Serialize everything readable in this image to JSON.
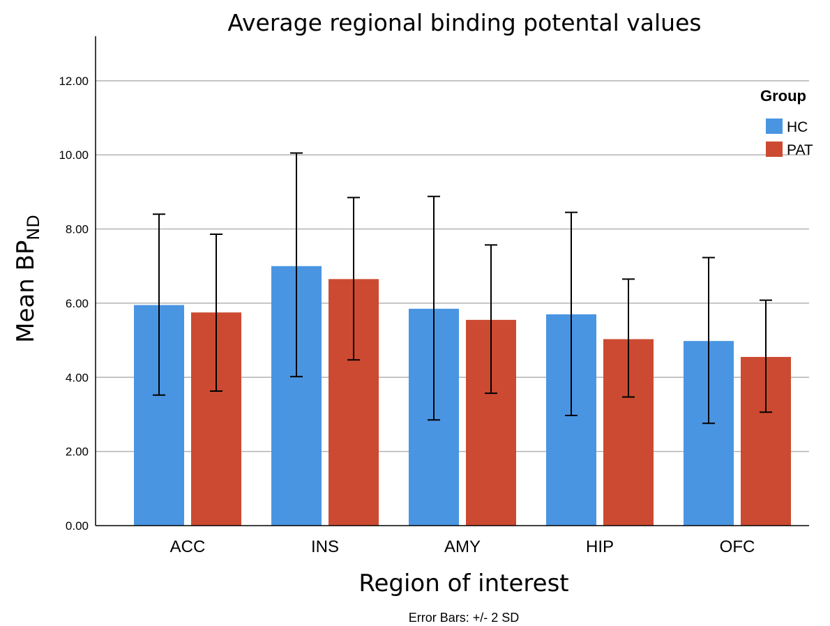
{
  "chart_data": {
    "type": "bar",
    "title": "Average regional binding potental values",
    "xlabel": "Region of interest",
    "ylabel": "Mean BP",
    "ylabel_subscript": "ND",
    "note": "Error Bars: +/- 2 SD",
    "categories": [
      "ACC",
      "INS",
      "AMY",
      "HIP",
      "OFC"
    ],
    "ylim": [
      0,
      13.2
    ],
    "yticks": [
      "0.00",
      "2.00",
      "4.00",
      "6.00",
      "8.00",
      "10.00",
      "12.00"
    ],
    "grid": true,
    "legend_title": "Group",
    "legend_position": "top-right",
    "series": [
      {
        "name": "HC",
        "color": "#4a95e2",
        "values": [
          5.95,
          7.0,
          5.85,
          5.7,
          4.98
        ],
        "error_low": [
          3.52,
          4.02,
          2.85,
          2.97,
          2.76
        ],
        "error_high": [
          8.4,
          10.05,
          8.88,
          8.45,
          7.23
        ]
      },
      {
        "name": "PAT",
        "color": "#cc4a31",
        "values": [
          5.75,
          6.65,
          5.55,
          5.03,
          4.55
        ],
        "error_low": [
          3.63,
          4.47,
          3.57,
          3.47,
          3.06
        ],
        "error_high": [
          7.86,
          8.85,
          7.57,
          6.65,
          6.08
        ]
      }
    ]
  }
}
